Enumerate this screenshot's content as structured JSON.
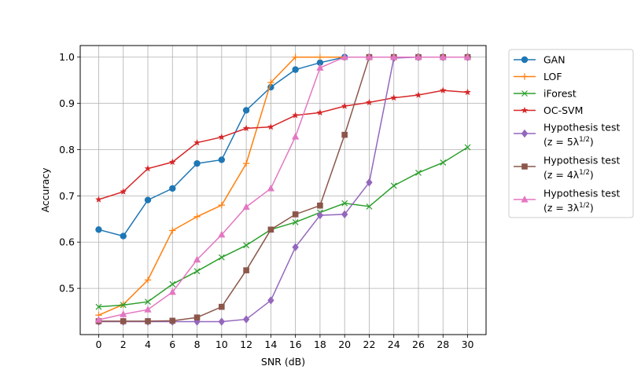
{
  "chart_data": {
    "type": "line",
    "title": "",
    "xlabel": "SNR (dB)",
    "ylabel": "Accuracy",
    "x": [
      0,
      2,
      4,
      6,
      8,
      10,
      12,
      14,
      16,
      18,
      20,
      22,
      24,
      26,
      28,
      30
    ],
    "xlim": [
      -1.5,
      31.5
    ],
    "ylim": [
      0.4,
      1.025
    ],
    "yticks": [
      0.5,
      0.6,
      0.7,
      0.8,
      0.9,
      1.0
    ],
    "ytick_labels": [
      "0.5",
      "0.6",
      "0.7",
      "0.8",
      "0.9",
      "1.0"
    ],
    "grid": true,
    "legend_position": "outside-right",
    "series": [
      {
        "name": "GAN",
        "color": "#1f77b4",
        "marker": "circle",
        "values": [
          0.627,
          0.613,
          0.691,
          0.716,
          0.77,
          0.778,
          0.885,
          0.935,
          0.973,
          0.988,
          1.0,
          1.0,
          1.0,
          1.0,
          1.0,
          1.0
        ]
      },
      {
        "name": "LOF",
        "color": "#ff7f0e",
        "marker": "plus",
        "values": [
          0.442,
          0.465,
          0.518,
          0.625,
          0.655,
          0.68,
          0.77,
          0.945,
          1.0,
          1.0,
          1.0,
          1.0,
          1.0,
          1.0,
          1.0,
          1.0
        ]
      },
      {
        "name": "iForest",
        "color": "#2ca02c",
        "marker": "x",
        "values": [
          0.46,
          0.464,
          0.471,
          0.509,
          0.537,
          0.567,
          0.593,
          0.627,
          0.643,
          0.664,
          0.684,
          0.677,
          0.722,
          0.75,
          0.772,
          0.805
        ]
      },
      {
        "name": "OC-SVM",
        "color": "#d62728",
        "marker": "star",
        "values": [
          0.692,
          0.709,
          0.759,
          0.773,
          0.815,
          0.827,
          0.846,
          0.849,
          0.874,
          0.88,
          0.894,
          0.902,
          0.912,
          0.918,
          0.928,
          0.924
        ]
      },
      {
        "name": "Hypothesis test",
        "name_line2": " (z = 5λ",
        "sup": "1/2",
        "tail": ")",
        "color": "#9467bd",
        "marker": "diamond",
        "values": [
          0.428,
          0.428,
          0.428,
          0.428,
          0.428,
          0.428,
          0.433,
          0.474,
          0.589,
          0.658,
          0.66,
          0.729,
          0.998,
          1.0,
          1.0,
          1.0
        ]
      },
      {
        "name": "Hypothesis test",
        "name_line2": " (z = 4λ",
        "sup": "1/2",
        "tail": ")",
        "color": "#8c564b",
        "marker": "square",
        "values": [
          0.429,
          0.429,
          0.429,
          0.43,
          0.437,
          0.46,
          0.539,
          0.627,
          0.66,
          0.679,
          0.832,
          1.0,
          1.0,
          1.0,
          1.0,
          1.0
        ]
      },
      {
        "name": "Hypothesis test",
        "name_line2": " (z = 3λ",
        "sup": "1/2",
        "tail": ")",
        "color": "#e377c2",
        "marker": "triangle",
        "values": [
          0.432,
          0.444,
          0.454,
          0.492,
          0.562,
          0.616,
          0.676,
          0.716,
          0.828,
          0.977,
          1.0,
          1.0,
          1.0,
          1.0,
          1.0,
          1.0
        ]
      }
    ]
  }
}
